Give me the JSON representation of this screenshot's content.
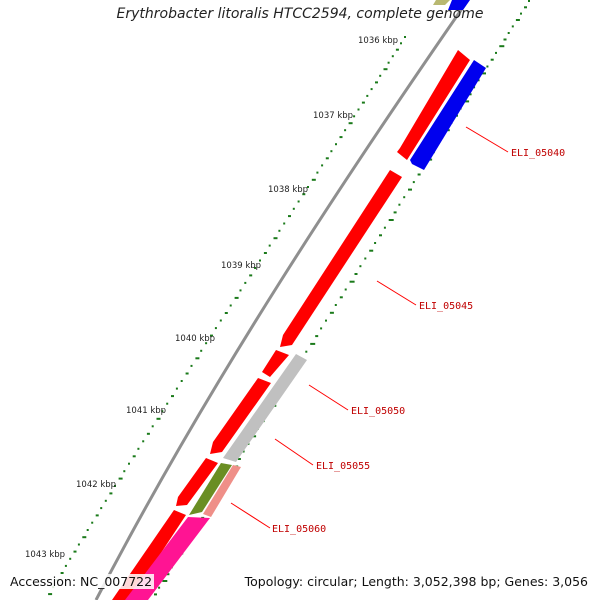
{
  "title": "Erythrobacter litoralis HTCC2594, complete genome",
  "footer": {
    "accession": "Accession: NC_007722",
    "summary": "Topology: circular; Length: 3,052,398 bp; Genes: 3,056"
  },
  "scale_labels": [
    "1036 kbp",
    "1037 kbp",
    "1038 kbp",
    "1039 kbp",
    "1040 kbp",
    "1041 kbp",
    "1042 kbp",
    "1043 kbp"
  ],
  "genes": [
    {
      "id": "ELI_05040",
      "strand": "reverse",
      "color": "#0000ee"
    },
    {
      "id": "ELI_05045",
      "strand": "forward",
      "color": "#ff0000"
    },
    {
      "id": "ELI_05050",
      "strand": "forward",
      "color": "#ff0000"
    },
    {
      "id": "ELI_05055",
      "strand": "reverse",
      "color": "#c0c0c0"
    },
    {
      "id": "ELI_05060",
      "strand": "reverse",
      "color": "#ef8f88"
    }
  ],
  "colors": {
    "backbone": "#8f8f8f",
    "forward_cds": "#ff0000",
    "reverse_cds": "#0000ee",
    "rna": "#c0c0c0",
    "pseudo": "#6a8e23",
    "other": "#ff1493",
    "misc": "#b8b870",
    "gc_skew": "#1a7a1a",
    "label_text": "#c00000"
  }
}
